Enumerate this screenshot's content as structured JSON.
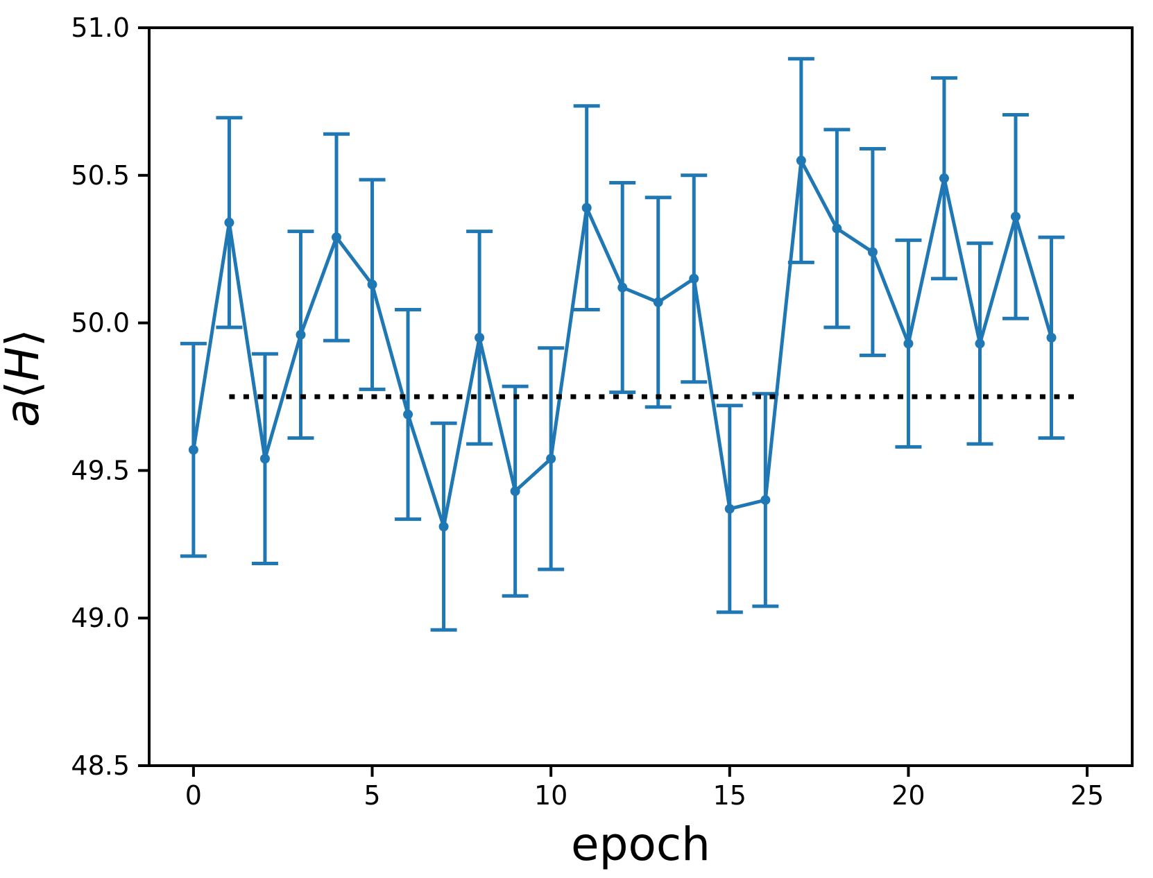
{
  "figure": {
    "background": "#ffffff"
  },
  "chart_data": {
    "type": "line",
    "subtype": "errorbar",
    "title": "",
    "xlabel": "epoch",
    "ylabel": "a⟨H⟩",
    "ylabel_parts": [
      {
        "text": "a",
        "italic": true
      },
      {
        "text": "⟨",
        "italic": false
      },
      {
        "text": "H",
        "italic": true
      },
      {
        "text": "⟩",
        "italic": false
      }
    ],
    "x": [
      0,
      1,
      2,
      3,
      4,
      5,
      6,
      7,
      8,
      9,
      10,
      11,
      12,
      13,
      14,
      15,
      16,
      17,
      18,
      19,
      20,
      21,
      22,
      23,
      24
    ],
    "y": [
      49.57,
      50.34,
      49.54,
      49.96,
      50.29,
      50.13,
      49.69,
      49.31,
      49.95,
      49.43,
      49.54,
      50.39,
      50.12,
      50.07,
      50.15,
      49.37,
      49.4,
      50.55,
      50.32,
      50.24,
      49.93,
      50.49,
      49.93,
      50.36,
      49.95
    ],
    "yerr": [
      0.36,
      0.355,
      0.355,
      0.35,
      0.35,
      0.355,
      0.355,
      0.35,
      0.36,
      0.355,
      0.375,
      0.345,
      0.355,
      0.355,
      0.35,
      0.35,
      0.36,
      0.345,
      0.335,
      0.35,
      0.35,
      0.34,
      0.34,
      0.345,
      0.34
    ],
    "series_color": "#1f77b4",
    "marker": "circle",
    "reference_line": {
      "y": 49.75,
      "x_start": 1.0,
      "x_end": 24.7,
      "style": "dotted",
      "color": "#000000"
    },
    "xlim": [
      -1.24,
      26.26
    ],
    "ylim": [
      48.5,
      51.0
    ],
    "xticks": {
      "values": [
        0,
        5,
        10,
        15,
        20,
        25
      ],
      "labels": [
        "0",
        "5",
        "10",
        "15",
        "20",
        "25"
      ]
    },
    "yticks": {
      "values": [
        48.5,
        49.0,
        49.5,
        50.0,
        50.5,
        51.0
      ],
      "labels": [
        "48.5",
        "49.0",
        "49.5",
        "50.0",
        "50.5",
        "51.0"
      ]
    },
    "grid": false,
    "legend": null,
    "axis_color": "#000000"
  }
}
